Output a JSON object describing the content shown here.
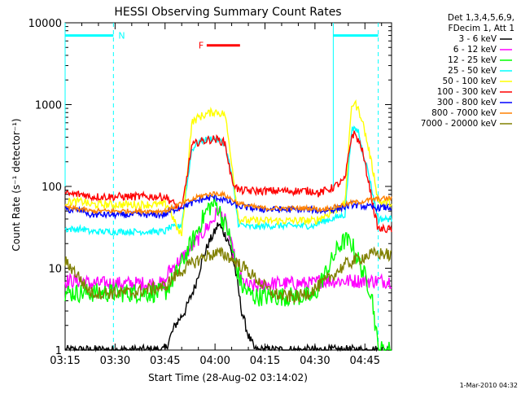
{
  "chart_data": {
    "type": "line",
    "title": "HESSI Observing Summary Count Rates",
    "xlabel": "Start Time (28-Aug-02 03:14:02)",
    "ylabel": "Count Rate (s⁻¹ detector⁻¹)",
    "y_scale": "log",
    "ylim": [
      1,
      10000
    ],
    "xlim_minutes": [
      0,
      98
    ],
    "x_ticks": [
      {
        "label": "03:15",
        "min": 0
      },
      {
        "label": "03:30",
        "min": 15
      },
      {
        "label": "03:45",
        "min": 30
      },
      {
        "label": "04:00",
        "min": 45
      },
      {
        "label": "04:15",
        "min": 60
      },
      {
        "label": "04:30",
        "min": 75
      },
      {
        "label": "04:45",
        "min": 90
      }
    ],
    "y_ticks": [
      {
        "label": "1",
        "value": 1
      },
      {
        "label": "10",
        "value": 10
      },
      {
        "label": "100",
        "value": 100
      },
      {
        "label": "1000",
        "value": 1000
      },
      {
        "label": "10000",
        "value": 10000
      }
    ],
    "legend_header": [
      "Det 1,3,4,5,6,9,",
      "FDecim 1, Att 1"
    ],
    "legend_position": "right",
    "grid": false,
    "series": [
      {
        "name": "3 - 6 keV",
        "color": "#000000",
        "points": [
          [
            0,
            1
          ],
          [
            30,
            1
          ],
          [
            33,
            2
          ],
          [
            36,
            3
          ],
          [
            39,
            6
          ],
          [
            41,
            12
          ],
          [
            43,
            20
          ],
          [
            45,
            28
          ],
          [
            46,
            35
          ],
          [
            47,
            30
          ],
          [
            49,
            22
          ],
          [
            51,
            10
          ],
          [
            53,
            3
          ],
          [
            55,
            1.5
          ],
          [
            57,
            1
          ],
          [
            98,
            1
          ]
        ]
      },
      {
        "name": "6 - 12 keV",
        "color": "#ff00ff",
        "points": [
          [
            0,
            7
          ],
          [
            6,
            7
          ],
          [
            7,
            6.5
          ],
          [
            30,
            6.5
          ],
          [
            31,
            9
          ],
          [
            34,
            12
          ],
          [
            38,
            18
          ],
          [
            41,
            26
          ],
          [
            43,
            33
          ],
          [
            45,
            42
          ],
          [
            46,
            52
          ],
          [
            47,
            45
          ],
          [
            48,
            38
          ],
          [
            50,
            18
          ],
          [
            53,
            7
          ],
          [
            55,
            6
          ],
          [
            58,
            6
          ],
          [
            60,
            6.5
          ],
          [
            75,
            6.5
          ],
          [
            76,
            7
          ],
          [
            98,
            7
          ]
        ]
      },
      {
        "name": "12 - 25 keV",
        "color": "#00ff00",
        "points": [
          [
            0,
            5
          ],
          [
            30,
            5
          ],
          [
            31,
            6
          ],
          [
            33,
            8
          ],
          [
            36,
            14
          ],
          [
            39,
            25
          ],
          [
            41,
            38
          ],
          [
            43,
            55
          ],
          [
            45,
            62
          ],
          [
            46,
            55
          ],
          [
            47,
            42
          ],
          [
            49,
            28
          ],
          [
            51,
            12
          ],
          [
            53,
            6
          ],
          [
            55,
            5
          ],
          [
            57,
            4.5
          ],
          [
            75,
            4.5
          ],
          [
            76,
            6
          ],
          [
            79,
            10
          ],
          [
            82,
            18
          ],
          [
            84,
            22
          ],
          [
            86,
            20
          ],
          [
            89,
            10
          ],
          [
            92,
            5
          ],
          [
            94,
            1
          ],
          [
            98,
            1
          ]
        ]
      },
      {
        "name": "25 - 50 keV",
        "color": "#00ffff",
        "points": [
          [
            0,
            30
          ],
          [
            6,
            30
          ],
          [
            7,
            28
          ],
          [
            30,
            28
          ],
          [
            31,
            31
          ],
          [
            34,
            32
          ],
          [
            35,
            35
          ],
          [
            38,
            280
          ],
          [
            40,
            350
          ],
          [
            43,
            380
          ],
          [
            45,
            390
          ],
          [
            46,
            370
          ],
          [
            48,
            330
          ],
          [
            50,
            140
          ],
          [
            52,
            35
          ],
          [
            55,
            32
          ],
          [
            58,
            32
          ],
          [
            60,
            33
          ],
          [
            75,
            33
          ],
          [
            76,
            36
          ],
          [
            80,
            40
          ],
          [
            84,
            45
          ],
          [
            86,
            500
          ],
          [
            88,
            480
          ],
          [
            89,
            300
          ],
          [
            91,
            150
          ],
          [
            93,
            60
          ],
          [
            94,
            40
          ],
          [
            98,
            40
          ]
        ]
      },
      {
        "name": "50 - 100 keV",
        "color": "#ffff00",
        "points": [
          [
            0,
            65
          ],
          [
            6,
            65
          ],
          [
            7,
            60
          ],
          [
            30,
            60
          ],
          [
            31,
            58
          ],
          [
            34,
            28
          ],
          [
            35,
            26
          ],
          [
            38,
            600
          ],
          [
            40,
            700
          ],
          [
            43,
            780
          ],
          [
            45,
            820
          ],
          [
            46,
            800
          ],
          [
            48,
            760
          ],
          [
            50,
            200
          ],
          [
            52,
            40
          ],
          [
            55,
            38
          ],
          [
            58,
            38
          ],
          [
            60,
            38
          ],
          [
            75,
            38
          ],
          [
            76,
            40
          ],
          [
            80,
            48
          ],
          [
            84,
            60
          ],
          [
            86,
            1000
          ],
          [
            87,
            1050
          ],
          [
            89,
            700
          ],
          [
            91,
            300
          ],
          [
            93,
            120
          ],
          [
            94,
            65
          ],
          [
            98,
            62
          ]
        ]
      },
      {
        "name": "100 - 300 keV",
        "color": "#ff0000",
        "points": [
          [
            0,
            80
          ],
          [
            6,
            80
          ],
          [
            7,
            75
          ],
          [
            30,
            75
          ],
          [
            31,
            70
          ],
          [
            34,
            55
          ],
          [
            35,
            52
          ],
          [
            38,
            310
          ],
          [
            40,
            350
          ],
          [
            43,
            370
          ],
          [
            45,
            380
          ],
          [
            46,
            370
          ],
          [
            48,
            340
          ],
          [
            50,
            120
          ],
          [
            52,
            90
          ],
          [
            55,
            88
          ],
          [
            58,
            88
          ],
          [
            60,
            88
          ],
          [
            75,
            88
          ],
          [
            76,
            82
          ],
          [
            80,
            95
          ],
          [
            84,
            120
          ],
          [
            86,
            420
          ],
          [
            87,
            440
          ],
          [
            89,
            300
          ],
          [
            91,
            120
          ],
          [
            93,
            45
          ],
          [
            94,
            30
          ],
          [
            98,
            30
          ]
        ]
      },
      {
        "name": "300 - 800 keV",
        "color": "#0000ff",
        "points": [
          [
            0,
            52
          ],
          [
            6,
            50
          ],
          [
            7,
            45
          ],
          [
            30,
            45
          ],
          [
            31,
            48
          ],
          [
            34,
            55
          ],
          [
            38,
            62
          ],
          [
            40,
            68
          ],
          [
            43,
            72
          ],
          [
            45,
            74
          ],
          [
            46,
            72
          ],
          [
            48,
            68
          ],
          [
            50,
            62
          ],
          [
            52,
            57
          ],
          [
            55,
            55
          ],
          [
            58,
            53
          ],
          [
            60,
            52
          ],
          [
            75,
            52
          ],
          [
            76,
            50
          ],
          [
            80,
            52
          ],
          [
            84,
            56
          ],
          [
            86,
            60
          ],
          [
            89,
            58
          ],
          [
            91,
            56
          ],
          [
            93,
            55
          ],
          [
            98,
            55
          ]
        ]
      },
      {
        "name": "800 - 7000 keV",
        "color": "#ff8000",
        "points": [
          [
            0,
            55
          ],
          [
            6,
            52
          ],
          [
            7,
            50
          ],
          [
            30,
            50
          ],
          [
            31,
            52
          ],
          [
            34,
            60
          ],
          [
            38,
            68
          ],
          [
            40,
            75
          ],
          [
            43,
            80
          ],
          [
            45,
            82
          ],
          [
            46,
            82
          ],
          [
            48,
            78
          ],
          [
            50,
            70
          ],
          [
            52,
            62
          ],
          [
            55,
            58
          ],
          [
            58,
            55
          ],
          [
            60,
            54
          ],
          [
            75,
            54
          ],
          [
            76,
            52
          ],
          [
            80,
            55
          ],
          [
            84,
            60
          ],
          [
            86,
            63
          ],
          [
            89,
            65
          ],
          [
            91,
            68
          ],
          [
            93,
            70
          ],
          [
            98,
            72
          ]
        ]
      },
      {
        "name": "7000 - 20000 keV",
        "color": "#808000",
        "points": [
          [
            0,
            12
          ],
          [
            2,
            10
          ],
          [
            4,
            8
          ],
          [
            6,
            6
          ],
          [
            8,
            5
          ],
          [
            15,
            5
          ],
          [
            20,
            5
          ],
          [
            25,
            5.5
          ],
          [
            30,
            6
          ],
          [
            33,
            8
          ],
          [
            36,
            10
          ],
          [
            39,
            12
          ],
          [
            42,
            14
          ],
          [
            45,
            15
          ],
          [
            47,
            15
          ],
          [
            49,
            14
          ],
          [
            51,
            12
          ],
          [
            54,
            10
          ],
          [
            58,
            7
          ],
          [
            62,
            5
          ],
          [
            66,
            4.5
          ],
          [
            70,
            4.5
          ],
          [
            73,
            5
          ],
          [
            76,
            6
          ],
          [
            80,
            8
          ],
          [
            84,
            11
          ],
          [
            88,
            13
          ],
          [
            90,
            14
          ],
          [
            93,
            15
          ],
          [
            96,
            15
          ],
          [
            98,
            14
          ]
        ]
      }
    ],
    "annotations": [
      {
        "type": "label",
        "text": "N",
        "color": "#00ffff"
      },
      {
        "type": "label",
        "text": "F",
        "color": "#ff0000"
      }
    ],
    "footer_timestamp": "1-Mar-2010 04:32"
  }
}
